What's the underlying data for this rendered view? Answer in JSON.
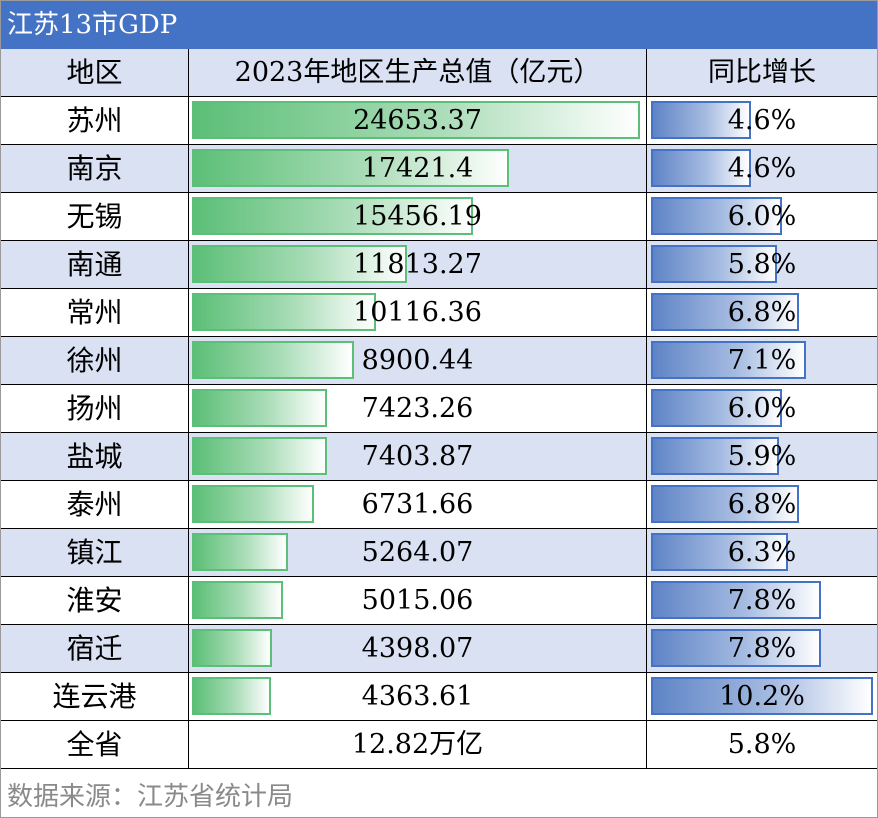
{
  "title": "江苏13市GDP",
  "header": {
    "col_region": "地区",
    "col_gdp": "2023年地区生产总值（亿元）",
    "col_growth": "同比增长"
  },
  "chart_data": {
    "type": "table",
    "categories": [
      "苏州",
      "南京",
      "无锡",
      "南通",
      "常州",
      "徐州",
      "扬州",
      "盐城",
      "泰州",
      "镇江",
      "淮安",
      "宿迁",
      "连云港"
    ],
    "gdp": [
      24653.37,
      17421.4,
      15456.19,
      11813.27,
      10116.36,
      8900.44,
      7423.26,
      7403.87,
      6731.66,
      5264.07,
      5015.06,
      4398.07,
      4363.61
    ],
    "gdp_labels": [
      "24653.37",
      "17421.4",
      "15456.19",
      "11813.27",
      "10116.36",
      "8900.44",
      "7423.26",
      "7403.87",
      "6731.66",
      "5264.07",
      "5015.06",
      "4398.07",
      "4363.61"
    ],
    "growth": [
      4.6,
      4.6,
      6.0,
      5.8,
      6.8,
      7.1,
      6.0,
      5.9,
      6.8,
      6.3,
      7.8,
      7.8,
      10.2
    ],
    "growth_labels": [
      "4.6%",
      "4.6%",
      "6.0%",
      "5.8%",
      "6.8%",
      "7.1%",
      "6.0%",
      "5.9%",
      "6.8%",
      "6.3%",
      "7.8%",
      "7.8%",
      "10.2%"
    ],
    "gdp_bar_max": 24653.37,
    "growth_bar_max": 10.2
  },
  "total": {
    "label": "全省",
    "gdp": "12.82万亿",
    "growth": "5.8%"
  },
  "colors": {
    "header_bg": "#4472c4",
    "row_alt": "#d9e1f2",
    "gdp_bar": "#5cbf77",
    "growth_bar": "#4472c4"
  },
  "source": "数据来源：江苏省统计局"
}
